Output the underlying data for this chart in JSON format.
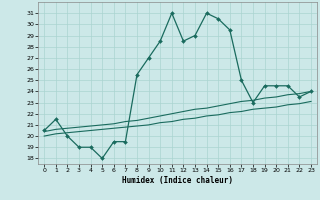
{
  "xlabel": "Humidex (Indice chaleur)",
  "bg_color": "#cce8e8",
  "line_color": "#1a6b5e",
  "grid_color": "#aad4d0",
  "xlim": [
    -0.5,
    23.5
  ],
  "ylim": [
    17.5,
    32.0
  ],
  "xticks": [
    0,
    1,
    2,
    3,
    4,
    5,
    6,
    7,
    8,
    9,
    10,
    11,
    12,
    13,
    14,
    15,
    16,
    17,
    18,
    19,
    20,
    21,
    22,
    23
  ],
  "yticks": [
    18,
    19,
    20,
    21,
    22,
    23,
    24,
    25,
    26,
    27,
    28,
    29,
    30,
    31
  ],
  "series1_x": [
    0,
    1,
    2,
    3,
    4,
    5,
    6,
    7,
    8,
    9,
    10,
    11,
    12,
    13,
    14,
    15,
    16,
    17,
    18,
    19,
    20,
    21,
    22,
    23
  ],
  "series1_y": [
    20.5,
    21.5,
    20.0,
    19.0,
    19.0,
    18.0,
    19.5,
    19.5,
    25.5,
    27.0,
    28.5,
    31.0,
    28.5,
    29.0,
    31.0,
    30.5,
    29.5,
    25.0,
    23.0,
    24.5,
    24.5,
    24.5,
    23.5,
    24.0
  ],
  "series2_x": [
    0,
    1,
    2,
    3,
    4,
    5,
    6,
    7,
    8,
    9,
    10,
    11,
    12,
    13,
    14,
    15,
    16,
    17,
    18,
    19,
    20,
    21,
    22,
    23
  ],
  "series2_y": [
    20.4,
    20.6,
    20.7,
    20.8,
    20.9,
    21.0,
    21.1,
    21.3,
    21.4,
    21.6,
    21.8,
    22.0,
    22.2,
    22.4,
    22.5,
    22.7,
    22.9,
    23.1,
    23.2,
    23.4,
    23.5,
    23.7,
    23.8,
    24.0
  ],
  "series3_x": [
    0,
    1,
    2,
    3,
    4,
    5,
    6,
    7,
    8,
    9,
    10,
    11,
    12,
    13,
    14,
    15,
    16,
    17,
    18,
    19,
    20,
    21,
    22,
    23
  ],
  "series3_y": [
    20.0,
    20.2,
    20.3,
    20.4,
    20.5,
    20.6,
    20.7,
    20.8,
    20.9,
    21.0,
    21.2,
    21.3,
    21.5,
    21.6,
    21.8,
    21.9,
    22.1,
    22.2,
    22.4,
    22.5,
    22.6,
    22.8,
    22.9,
    23.1
  ]
}
